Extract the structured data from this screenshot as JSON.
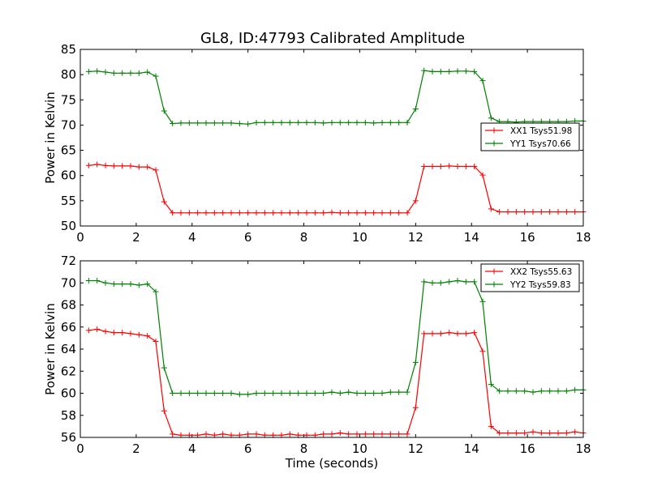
{
  "figure": {
    "title": "GL8, ID:47793 Calibrated Amplitude"
  },
  "chart_data": [
    {
      "type": "line",
      "title": "GL8, ID:47793 Calibrated Amplitude",
      "xlabel": "",
      "ylabel": "Power in Kelvin",
      "xlim": [
        0,
        18
      ],
      "ylim": [
        50,
        85
      ],
      "xticks": [
        0,
        2,
        4,
        6,
        8,
        10,
        12,
        14,
        16,
        18
      ],
      "yticks": [
        50,
        55,
        60,
        65,
        70,
        75,
        80,
        85
      ],
      "grid": false,
      "legend_position": "center-right",
      "x": [
        0.3,
        0.6,
        0.9,
        1.2,
        1.5,
        1.8,
        2.1,
        2.4,
        2.7,
        3.0,
        3.3,
        3.6,
        3.9,
        4.2,
        4.5,
        4.8,
        5.1,
        5.4,
        5.7,
        6.0,
        6.3,
        6.6,
        6.9,
        7.2,
        7.5,
        7.8,
        8.1,
        8.4,
        8.7,
        9.0,
        9.3,
        9.6,
        9.9,
        10.2,
        10.5,
        10.8,
        11.1,
        11.4,
        11.7,
        12.0,
        12.3,
        12.6,
        12.9,
        13.2,
        13.5,
        13.8,
        14.1,
        14.4,
        14.7,
        15.0,
        15.3,
        15.6,
        15.9,
        16.2,
        16.5,
        16.8,
        17.1,
        17.4,
        17.7,
        18.0
      ],
      "series": [
        {
          "name": "XX1 Tsys51.98",
          "color": "#ff0000",
          "values": [
            62.0,
            62.2,
            62.0,
            61.9,
            61.9,
            61.9,
            61.7,
            61.7,
            61.1,
            54.8,
            52.6,
            52.6,
            52.6,
            52.6,
            52.6,
            52.6,
            52.6,
            52.6,
            52.6,
            52.6,
            52.6,
            52.6,
            52.6,
            52.6,
            52.6,
            52.6,
            52.6,
            52.6,
            52.6,
            52.7,
            52.6,
            52.6,
            52.6,
            52.6,
            52.6,
            52.6,
            52.6,
            52.6,
            52.6,
            55.0,
            61.8,
            61.8,
            61.8,
            61.9,
            61.8,
            61.8,
            61.8,
            60.1,
            53.4,
            52.8,
            52.8,
            52.8,
            52.8,
            52.8,
            52.8,
            52.8,
            52.8,
            52.8,
            52.8,
            52.8
          ]
        },
        {
          "name": "YY1 Tsys70.66",
          "color": "#008000",
          "values": [
            80.6,
            80.7,
            80.5,
            80.3,
            80.3,
            80.3,
            80.3,
            80.5,
            79.7,
            72.8,
            70.3,
            70.4,
            70.4,
            70.4,
            70.4,
            70.4,
            70.4,
            70.4,
            70.3,
            70.2,
            70.5,
            70.5,
            70.5,
            70.5,
            70.5,
            70.5,
            70.5,
            70.5,
            70.4,
            70.5,
            70.5,
            70.5,
            70.5,
            70.5,
            70.4,
            70.5,
            70.5,
            70.5,
            70.5,
            73.2,
            80.8,
            80.6,
            80.6,
            80.6,
            80.7,
            80.7,
            80.6,
            78.8,
            71.4,
            70.7,
            70.7,
            70.6,
            70.7,
            70.7,
            70.7,
            70.7,
            70.7,
            70.7,
            70.8,
            70.8
          ]
        }
      ]
    },
    {
      "type": "line",
      "title": "",
      "xlabel": "Time (seconds)",
      "ylabel": "Power in Kelvin",
      "xlim": [
        0,
        18
      ],
      "ylim": [
        56,
        72
      ],
      "xticks": [
        0,
        2,
        4,
        6,
        8,
        10,
        12,
        14,
        16,
        18
      ],
      "yticks": [
        56,
        58,
        60,
        62,
        64,
        66,
        68,
        70,
        72
      ],
      "grid": false,
      "legend_position": "top-right",
      "x": [
        0.3,
        0.6,
        0.9,
        1.2,
        1.5,
        1.8,
        2.1,
        2.4,
        2.7,
        3.0,
        3.3,
        3.6,
        3.9,
        4.2,
        4.5,
        4.8,
        5.1,
        5.4,
        5.7,
        6.0,
        6.3,
        6.6,
        6.9,
        7.2,
        7.5,
        7.8,
        8.1,
        8.4,
        8.7,
        9.0,
        9.3,
        9.6,
        9.9,
        10.2,
        10.5,
        10.8,
        11.1,
        11.4,
        11.7,
        12.0,
        12.3,
        12.6,
        12.9,
        13.2,
        13.5,
        13.8,
        14.1,
        14.4,
        14.7,
        15.0,
        15.3,
        15.6,
        15.9,
        16.2,
        16.5,
        16.8,
        17.1,
        17.4,
        17.7,
        18.0
      ],
      "series": [
        {
          "name": "XX2 Tsys55.63",
          "color": "#ff0000",
          "values": [
            65.7,
            65.8,
            65.6,
            65.5,
            65.5,
            65.4,
            65.3,
            65.2,
            64.7,
            58.4,
            56.3,
            56.2,
            56.2,
            56.2,
            56.3,
            56.2,
            56.3,
            56.2,
            56.2,
            56.3,
            56.3,
            56.2,
            56.2,
            56.2,
            56.3,
            56.2,
            56.2,
            56.2,
            56.3,
            56.3,
            56.4,
            56.3,
            56.3,
            56.3,
            56.3,
            56.3,
            56.3,
            56.3,
            56.3,
            58.7,
            65.4,
            65.4,
            65.4,
            65.5,
            65.4,
            65.4,
            65.5,
            63.8,
            57.0,
            56.4,
            56.4,
            56.4,
            56.4,
            56.5,
            56.4,
            56.4,
            56.4,
            56.4,
            56.5,
            56.4
          ]
        },
        {
          "name": "YY2 Tsys59.83",
          "color": "#008000",
          "values": [
            70.2,
            70.2,
            70.0,
            69.9,
            69.9,
            69.9,
            69.8,
            69.9,
            69.2,
            62.3,
            60.0,
            60.0,
            60.0,
            60.0,
            60.0,
            60.0,
            60.0,
            60.0,
            59.9,
            59.9,
            60.0,
            60.0,
            60.0,
            60.0,
            60.0,
            60.0,
            60.0,
            60.0,
            60.0,
            60.1,
            60.0,
            60.1,
            60.0,
            60.0,
            60.0,
            60.0,
            60.1,
            60.1,
            60.1,
            62.8,
            70.1,
            70.0,
            70.0,
            70.1,
            70.2,
            70.1,
            70.1,
            68.3,
            60.8,
            60.2,
            60.2,
            60.2,
            60.2,
            60.1,
            60.2,
            60.2,
            60.2,
            60.2,
            60.3,
            60.3
          ]
        }
      ]
    }
  ]
}
